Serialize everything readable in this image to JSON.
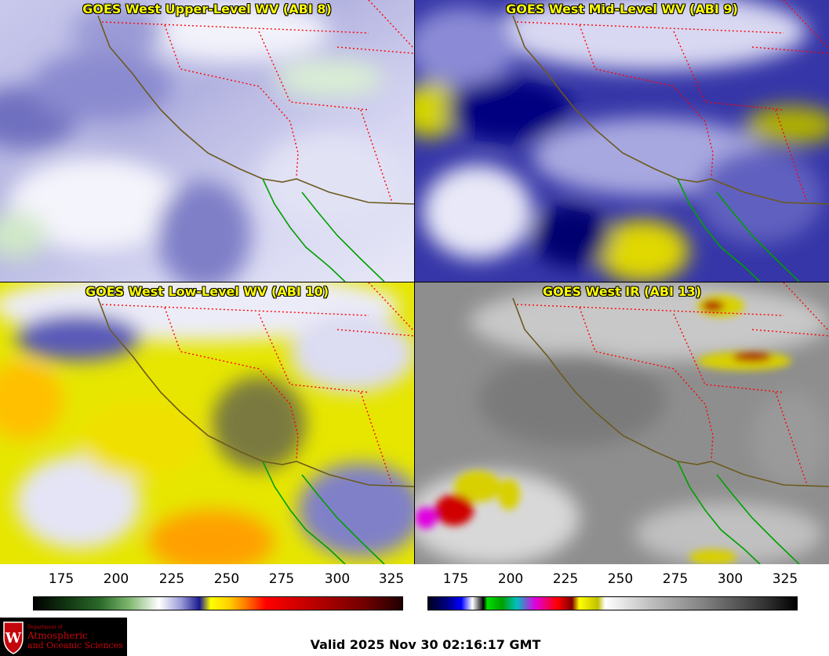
{
  "panels": [
    {
      "title": "GOES West Upper-Level WV (ABI 8)"
    },
    {
      "title": "GOES West Mid-Level WV (ABI 9)"
    },
    {
      "title": "GOES West Low-Level WV (ABI 10)"
    },
    {
      "title": "GOES West IR (ABI 13)"
    }
  ],
  "colorbars": {
    "wv": {
      "ticks": [
        "175",
        "200",
        "225",
        "250",
        "275",
        "300",
        "325"
      ]
    },
    "ir": {
      "ticks": [
        "175",
        "200",
        "225",
        "250",
        "275",
        "300",
        "325"
      ]
    }
  },
  "logo": {
    "line1": "Department of",
    "line2": "Atmospheric",
    "line3": "and Oceanic Sciences",
    "shield_letter": "W"
  },
  "valid": "Valid 2025 Nov 30 02:16:17 GMT",
  "colors": {
    "title": "#ffff00",
    "state_borders": "#ff0000",
    "coast": "#6b5a1e",
    "mexico_coast": "#00a000"
  }
}
